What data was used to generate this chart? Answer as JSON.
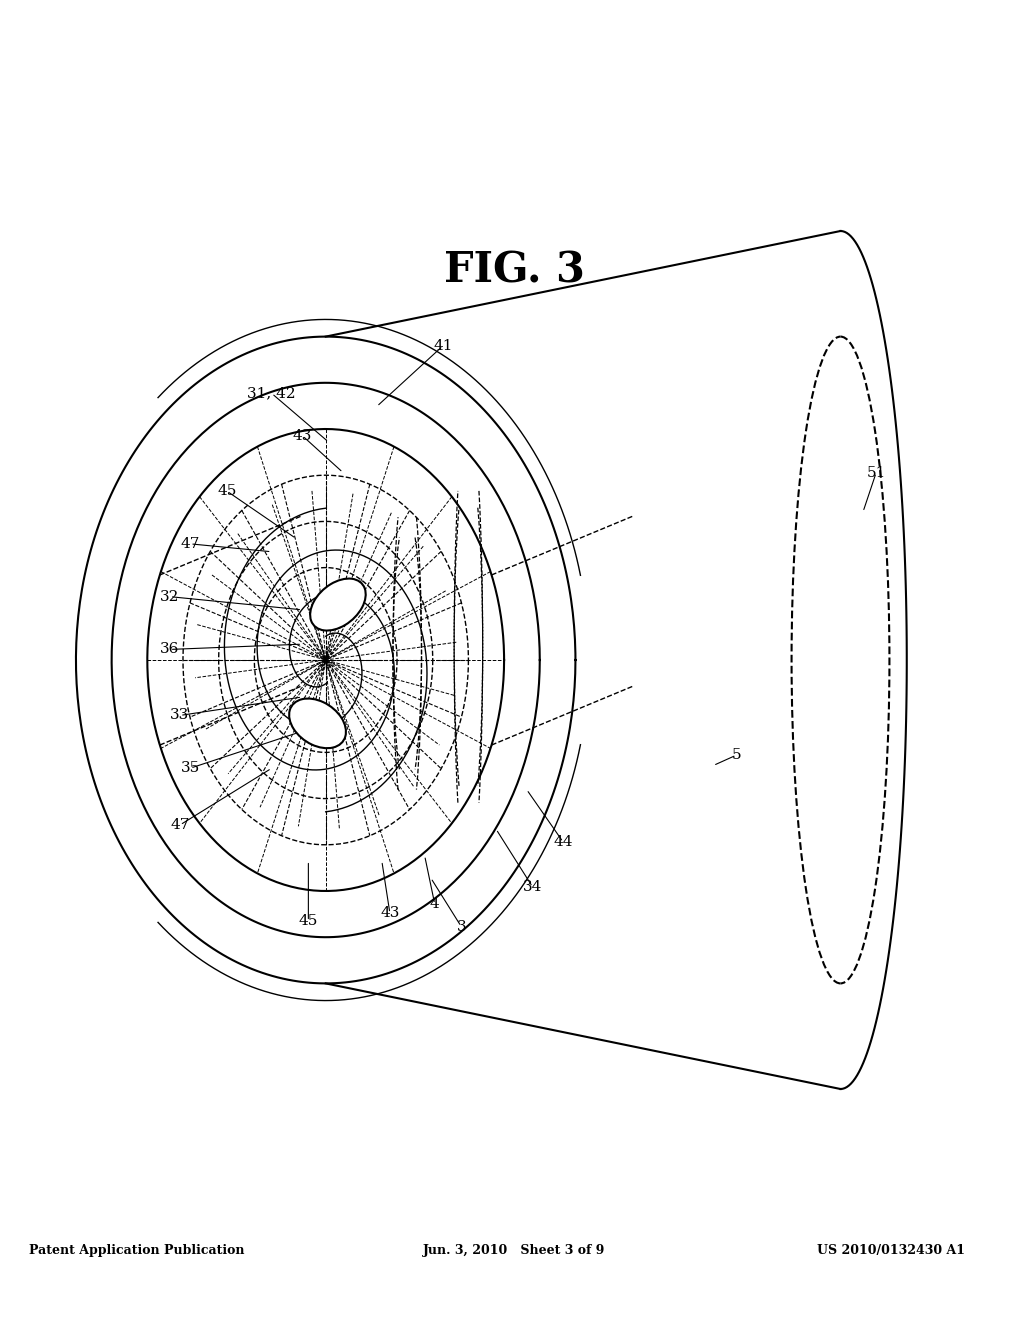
{
  "background_color": "#ffffff",
  "line_color": "#000000",
  "header_left": "Patent Application Publication",
  "header_mid": "Jun. 3, 2010   Sheet 3 of 9",
  "header_right": "US 2010/0132430 A1",
  "figure_label": "FIG. 3"
}
